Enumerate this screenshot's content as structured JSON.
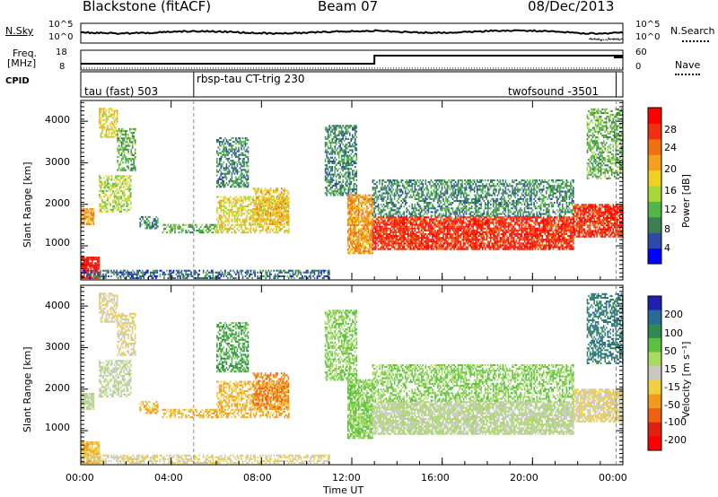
{
  "header": {
    "station": "Blackstone (fitACF)",
    "beam": "Beam 07",
    "date": "08/Dec/2013"
  },
  "sky_panel": {
    "left_label": "N.Sky",
    "left_ticks": [
      "10^5",
      "10^0"
    ],
    "right_label": "N.Search",
    "right_ticks": [
      "10^5",
      "10^0"
    ]
  },
  "freq_panel": {
    "left_label_1": "Freq.",
    "left_label_2": "[MHz]",
    "left_ticks": [
      "18",
      "8"
    ],
    "right_label": "Nave",
    "right_ticks": [
      "60",
      "0"
    ]
  },
  "cpid_panel": {
    "label": "CPID",
    "segments": [
      "tau (fast) 503",
      "rbsp-tau CT-trig 230",
      "twofsound -3501"
    ]
  },
  "x_axis": {
    "title": "Time UT",
    "ticks": [
      "00:00",
      "04:00",
      "08:00",
      "12:00",
      "16:00",
      "20:00",
      "00:00"
    ]
  },
  "power_panel": {
    "ylabel": "Slant Range [km]",
    "yticks": [
      "4000",
      "3000",
      "2000",
      "1000"
    ],
    "colorbar_title": "Power [dB]",
    "colorbar_ticks": [
      "28",
      "24",
      "20",
      "16",
      "12",
      "8",
      "4"
    ],
    "colors": [
      "#0000ff",
      "#2c4aa6",
      "#3c7f56",
      "#4fb848",
      "#a8d73a",
      "#f0d020",
      "#f3a020",
      "#f07010",
      "#f03010",
      "#ff0000"
    ]
  },
  "velocity_panel": {
    "ylabel": "Slant Range [km]",
    "yticks": [
      "4000",
      "3000",
      "2000",
      "1000"
    ],
    "colorbar_title": "Velocity [m s⁻¹]",
    "colorbar_ticks": [
      "200",
      "100",
      "50",
      "15",
      "-15",
      "-50",
      "-100",
      "-200"
    ],
    "colors": [
      "#2020b0",
      "#2a6a98",
      "#2e8a50",
      "#5cc040",
      "#a6da60",
      "#c8c8c0",
      "#f0d040",
      "#f09a20",
      "#f06010",
      "#e02010",
      "#ff0000"
    ]
  },
  "chart_data": {
    "type": "heatmap",
    "title": "Blackstone (fitACF)",
    "xlabel": "Time UT",
    "ylabel": "Slant Range [km]",
    "xlim": [
      0,
      24
    ],
    "ylim": [
      180,
      4500
    ],
    "x_tick_hours": [
      0,
      4,
      8,
      12,
      16,
      20,
      24
    ],
    "y_ticks_km": [
      1000,
      2000,
      3000,
      4000
    ],
    "power_dB_range": [
      0,
      30
    ],
    "velocity_range": [
      -250,
      250
    ],
    "cpid_change_hours": [
      5.0,
      23.7
    ],
    "frequency_step_hour": 13.0,
    "echo_regions": [
      {
        "t": [
          0.0,
          0.6
        ],
        "r": [
          1500,
          1900
        ],
        "power": 20,
        "velocity": -15
      },
      {
        "t": [
          0.0,
          0.8
        ],
        "r": [
          200,
          700
        ],
        "power": 28,
        "velocity": -100
      },
      {
        "t": [
          0.8,
          2.2
        ],
        "r": [
          1800,
          2700
        ],
        "power": 14,
        "velocity": -15
      },
      {
        "t": [
          0.8,
          1.6
        ],
        "r": [
          3600,
          4300
        ],
        "power": 16,
        "velocity": -50
      },
      {
        "t": [
          1.6,
          2.4
        ],
        "r": [
          2800,
          3800
        ],
        "power": 10,
        "velocity": -50
      },
      {
        "t": [
          2.6,
          3.4
        ],
        "r": [
          1400,
          1700
        ],
        "power": 8,
        "velocity": -100
      },
      {
        "t": [
          3.6,
          6.0
        ],
        "r": [
          1300,
          1500
        ],
        "power": 10,
        "velocity": -100
      },
      {
        "t": [
          6.0,
          7.4
        ],
        "r": [
          2400,
          3600
        ],
        "power": 8,
        "velocity": 50
      },
      {
        "t": [
          6.0,
          9.2
        ],
        "r": [
          1300,
          2200
        ],
        "power": 16,
        "velocity": -100
      },
      {
        "t": [
          7.6,
          9.2
        ],
        "r": [
          1500,
          2400
        ],
        "power": 18,
        "velocity": -200
      },
      {
        "t": [
          10.8,
          12.2
        ],
        "r": [
          2200,
          3900
        ],
        "power": 8,
        "velocity": 15
      },
      {
        "t": [
          11.8,
          12.9
        ],
        "r": [
          800,
          2200
        ],
        "power": 20,
        "velocity": 15
      },
      {
        "t": [
          12.9,
          21.8
        ],
        "r": [
          900,
          1700
        ],
        "power": 26,
        "velocity": -15
      },
      {
        "t": [
          12.9,
          21.8
        ],
        "r": [
          1700,
          2600
        ],
        "power": 8,
        "velocity": 15
      },
      {
        "t": [
          21.8,
          24.0
        ],
        "r": [
          1200,
          2000
        ],
        "power": 26,
        "velocity": -50
      },
      {
        "t": [
          22.4,
          24.0
        ],
        "r": [
          2600,
          4300
        ],
        "power": 10,
        "velocity": 100
      },
      {
        "t": [
          0.0,
          11.0
        ],
        "r": [
          200,
          420
        ],
        "power": 6,
        "velocity": -50
      }
    ]
  }
}
